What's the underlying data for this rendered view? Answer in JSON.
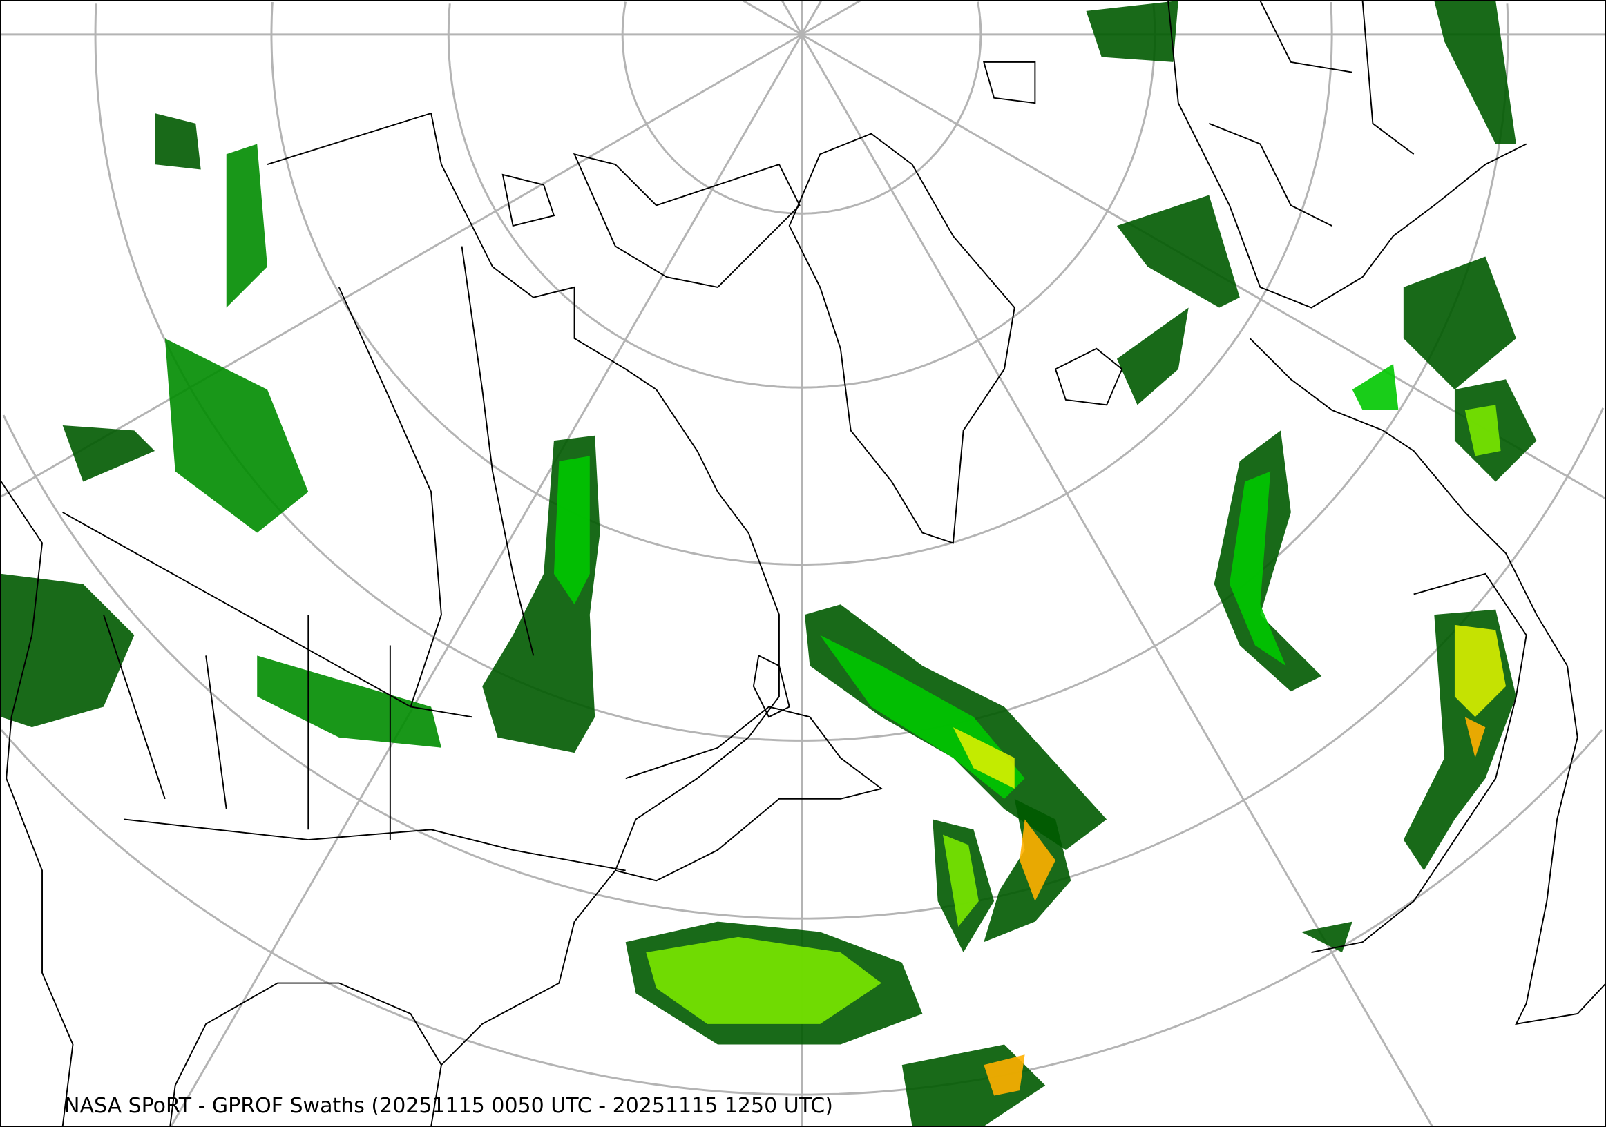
{
  "caption": "NASA SPoRT - GPROF Swaths (20251115 0050 UTC - 20251115 1250 UTC)",
  "map": {
    "projection": "polar stereographic (north pole)",
    "graticule_color": "#b4b4b4",
    "coastline_color": "#000000",
    "precip_colors": [
      "#005a00",
      "#008c00",
      "#00c800",
      "#7ae800",
      "#d8f000",
      "#ffb000",
      "#ff3000"
    ]
  }
}
